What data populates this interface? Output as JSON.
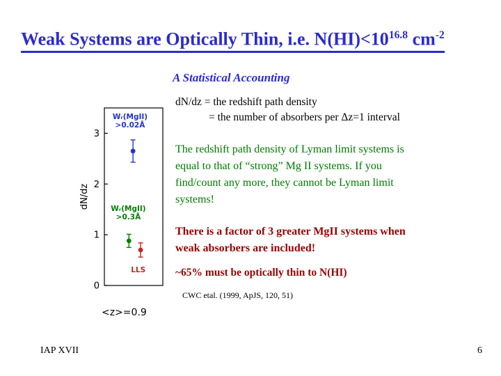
{
  "title": {
    "prefix": "Weak Systems are Optically Thin, i.e. N(HI)<10",
    "sup1": "16.8",
    "mid": " cm",
    "sup2": "-2"
  },
  "subtitle": "A Statistical Accounting",
  "body": {
    "dndz_line1": "dN/dz = the redshift path density",
    "dndz_line2": "= the number of absorbers per Δz=1 interval",
    "green_lines": [
      "The redshift path density of Lyman limit systems is",
      "equal to that of “strong” Mg II systems.  If you",
      "find/count any more, they cannot be Lyman limit",
      "systems!"
    ],
    "factor_lines": [
      "There is a factor of 3 greater MgII systems when",
      "weak absorbers are included!"
    ],
    "thin_text": "~65% must be optically thin to N(HI)",
    "citation": "CWC etal.  (1999, ApJS, 120, 51)"
  },
  "footer": {
    "left": "IAP XVII",
    "page_number": "6"
  },
  "colors": {
    "title_blue": "#2b2bcc",
    "green_text": "#007a00",
    "maroon_text": "#990000"
  },
  "chart_data": {
    "type": "scatter",
    "title": "",
    "ylabel": "dN/dz",
    "ylim": [
      0,
      3.5
    ],
    "yticks": [
      0,
      1,
      2,
      3
    ],
    "grid": false,
    "caption_below": "<z>=0.9",
    "series": [
      {
        "name": "mgii-weak",
        "label_lines": [
          "Wᵣ(MgII)",
          ">0.02Å"
        ],
        "color": "#2233cc",
        "x_frac": 0.49,
        "value": 2.65,
        "error": 0.22,
        "label_x_frac": 0.44,
        "label_value_y": 3.28
      },
      {
        "name": "mgii-strong",
        "label_lines": [
          "Wᵣ(MgII)",
          ">0.3Å"
        ],
        "color": "#008000",
        "x_frac": 0.42,
        "value": 0.88,
        "error": 0.13,
        "label_x_frac": 0.41,
        "label_value_y": 1.47
      },
      {
        "name": "lls",
        "label_lines": [
          "LLS"
        ],
        "color": "#cc2222",
        "x_frac": 0.62,
        "value": 0.7,
        "error": 0.14,
        "label_x_frac": 0.58,
        "label_value_y": 0.26
      }
    ]
  }
}
